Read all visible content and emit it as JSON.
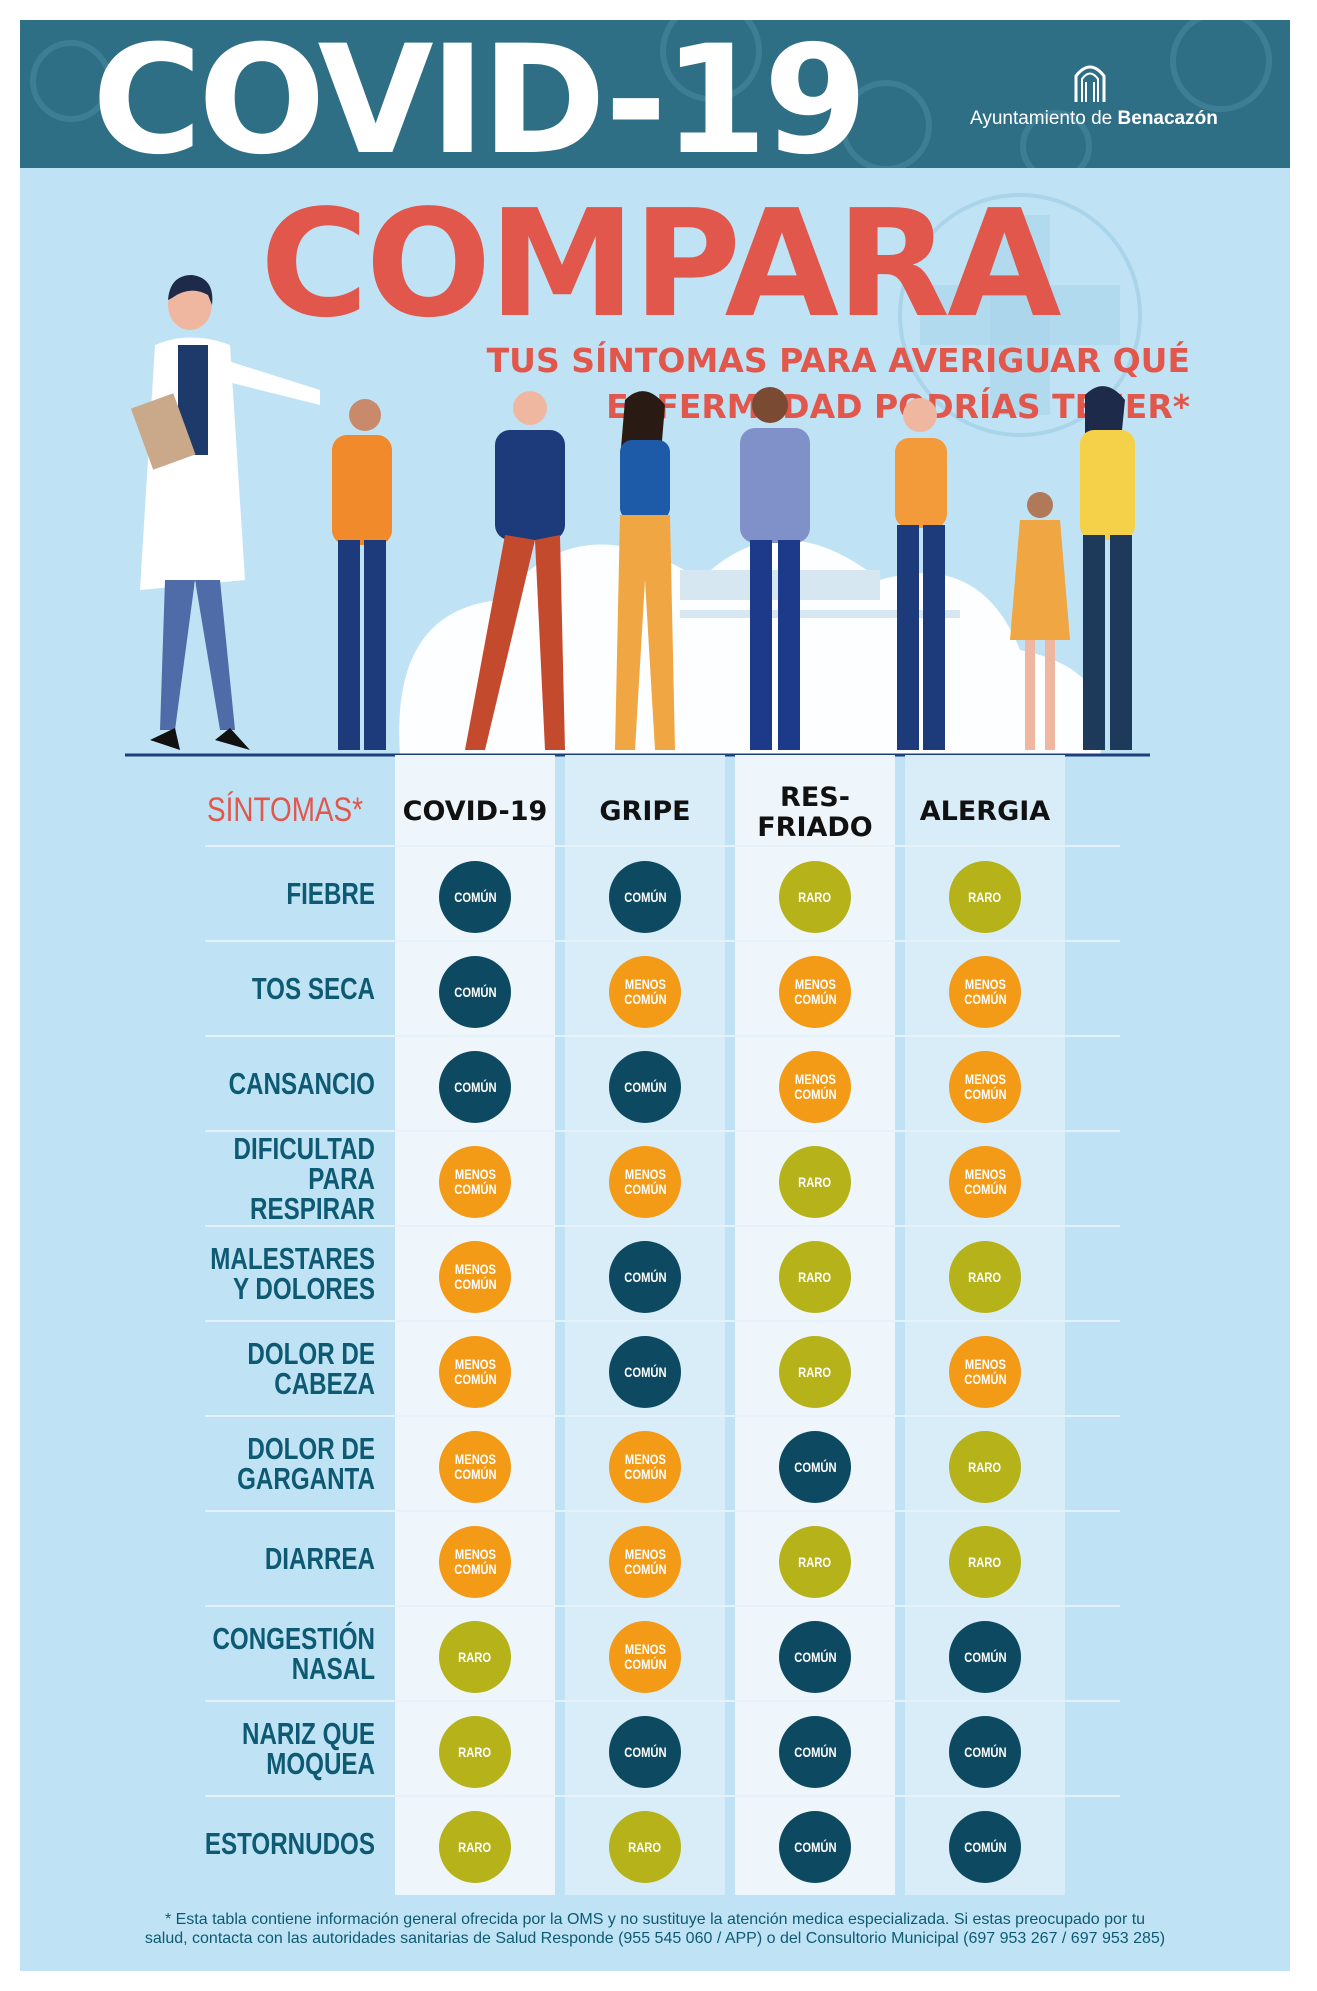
{
  "header": {
    "title": "COVID-19",
    "logo_text_prefix": "Ayuntamiento de",
    "logo_text_bold": "Benacazón"
  },
  "headline": "COMPARA",
  "subtitle_line1": "TUS SÍNTOMAS PARA AVERIGUAR QUÉ",
  "subtitle_line2": "ENFERMEDAD PODRÍAS TENER*",
  "table": {
    "symptoms_header": "SÍNTOMAS*",
    "columns": [
      "COVID-19",
      "GRIPE",
      "RES-\nFRIADO",
      "ALERGIA"
    ],
    "rows": [
      {
        "label": "FIEBRE",
        "values": [
          "comun",
          "comun",
          "raro",
          "raro"
        ]
      },
      {
        "label": "TOS SECA",
        "values": [
          "comun",
          "menos",
          "menos",
          "menos"
        ]
      },
      {
        "label": "CANSANCIO",
        "values": [
          "comun",
          "comun",
          "menos",
          "menos"
        ]
      },
      {
        "label": "DIFICULTAD\nPARA RESPIRAR",
        "values": [
          "menos",
          "menos",
          "raro",
          "menos"
        ]
      },
      {
        "label": "MALESTARES\nY DOLORES",
        "values": [
          "menos",
          "comun",
          "raro",
          "raro"
        ]
      },
      {
        "label": "DOLOR DE\nCABEZA",
        "values": [
          "menos",
          "comun",
          "raro",
          "menos"
        ]
      },
      {
        "label": "DOLOR DE\nGARGANTA",
        "values": [
          "menos",
          "menos",
          "comun",
          "raro"
        ]
      },
      {
        "label": "DIARREA",
        "values": [
          "menos",
          "menos",
          "raro",
          "raro"
        ]
      },
      {
        "label": "CONGESTIÓN\nNASAL",
        "values": [
          "raro",
          "menos",
          "comun",
          "comun"
        ]
      },
      {
        "label": "NARIZ QUE\nMOQUEA",
        "values": [
          "raro",
          "comun",
          "comun",
          "comun"
        ]
      },
      {
        "label": "ESTORNUDOS",
        "values": [
          "raro",
          "raro",
          "comun",
          "comun"
        ]
      }
    ],
    "legend": {
      "comun": "COMÚN",
      "menos": "MENOS\nCOMÚN",
      "raro": "RARO"
    }
  },
  "colors": {
    "comun": "#0d4a62",
    "menos": "#f39a16",
    "raro": "#b5b21a",
    "accent": "#e2574c",
    "background": "#bfe3f5"
  },
  "footnote_line1": "* Esta tabla contiene información general ofrecida por la OMS y no sustituye la atención medica especializada. Si estas preocupado por tu",
  "footnote_line2": "salud, contacta con las autoridades sanitarias de Salud Responde (955 545 060 / APP) o del Consultorio Municipal (697 953 267 / 697 953 285)"
}
